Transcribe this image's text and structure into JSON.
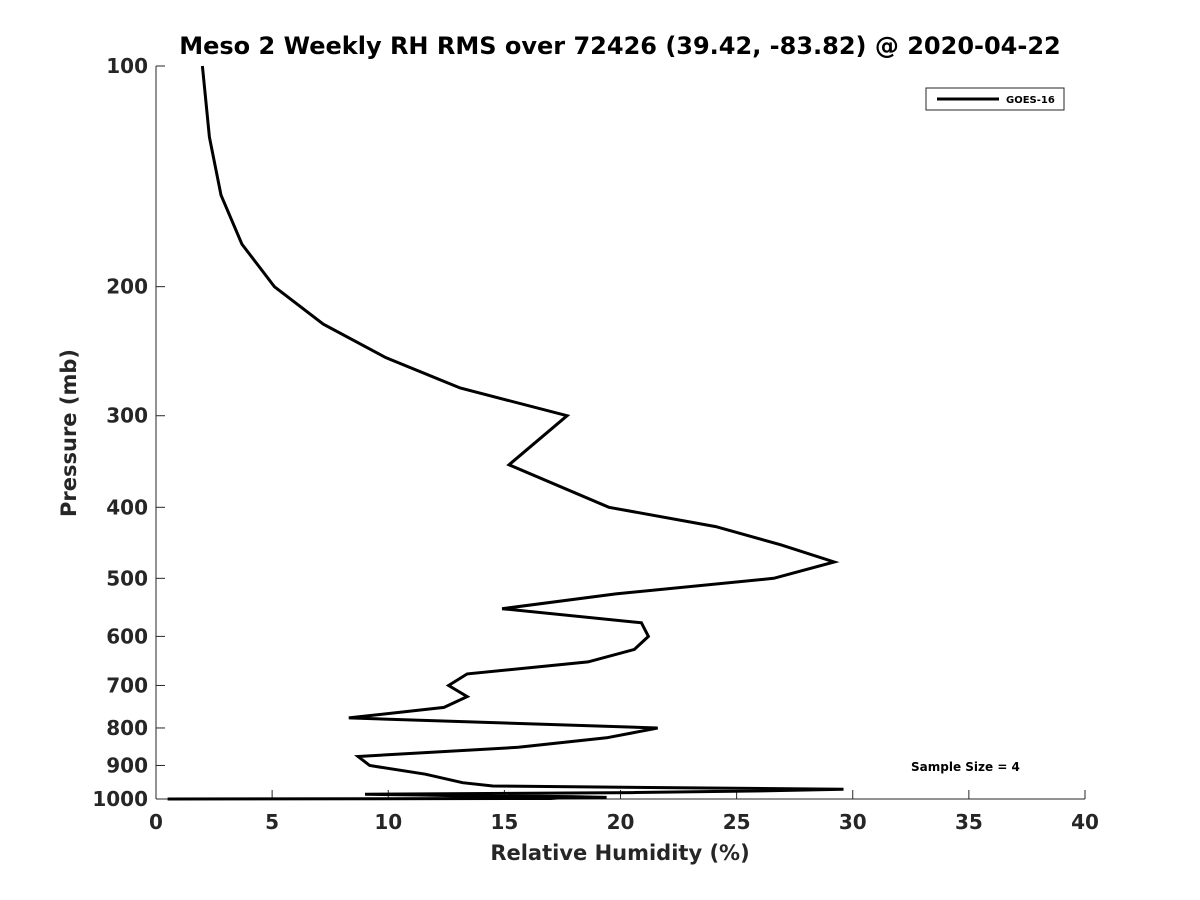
{
  "chart_data": {
    "type": "line",
    "title": "Meso 2 Weekly RH RMS over 72426 (39.42, -83.82) @ 2020-04-22",
    "xlabel": "Relative Humidity (%)",
    "ylabel": "Pressure (mb)",
    "xlim": [
      0,
      40
    ],
    "ylim": [
      100,
      1000
    ],
    "y_scale": "log",
    "y_reversed": true,
    "xticks": [
      0,
      5,
      10,
      15,
      20,
      25,
      30,
      35,
      40
    ],
    "yticks": [
      100,
      200,
      300,
      400,
      500,
      600,
      700,
      800,
      900,
      1000
    ],
    "grid": false,
    "legend_position": "top-right",
    "series": [
      {
        "name": "GOES-16",
        "color": "#000000",
        "points": [
          [
            2.0,
            100
          ],
          [
            2.3,
            125
          ],
          [
            2.8,
            150
          ],
          [
            3.7,
            175
          ],
          [
            5.1,
            200
          ],
          [
            7.2,
            225
          ],
          [
            9.9,
            250
          ],
          [
            13.1,
            275
          ],
          [
            17.7,
            300
          ],
          [
            15.2,
            350
          ],
          [
            19.5,
            400
          ],
          [
            24.1,
            425
          ],
          [
            26.9,
            450
          ],
          [
            29.2,
            475
          ],
          [
            26.6,
            500
          ],
          [
            19.8,
            525
          ],
          [
            14.9,
            550
          ],
          [
            20.9,
            575
          ],
          [
            21.2,
            600
          ],
          [
            20.6,
            625
          ],
          [
            18.6,
            650
          ],
          [
            13.4,
            675
          ],
          [
            12.6,
            700
          ],
          [
            13.4,
            725
          ],
          [
            12.4,
            750
          ],
          [
            8.3,
            775
          ],
          [
            21.6,
            800
          ],
          [
            19.4,
            825
          ],
          [
            15.6,
            850
          ],
          [
            8.7,
            875
          ],
          [
            9.2,
            900
          ],
          [
            11.6,
            925
          ],
          [
            13.2,
            950
          ],
          [
            14.5,
            960
          ],
          [
            29.6,
            970
          ],
          [
            26.1,
            975
          ],
          [
            20.5,
            980
          ],
          [
            9.0,
            985
          ],
          [
            11.3,
            987.5
          ],
          [
            13.1,
            990
          ],
          [
            17.9,
            992.5
          ],
          [
            19.4,
            995
          ],
          [
            17.3,
            997
          ],
          [
            17.0,
            998.5
          ],
          [
            0.5,
            1000
          ]
        ]
      }
    ],
    "annotations": [
      "Sample Size = 4"
    ]
  }
}
